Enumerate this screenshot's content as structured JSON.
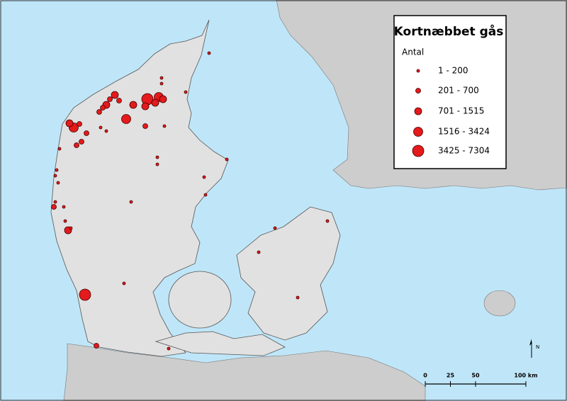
{
  "map": {
    "title": "Kortnæbbet gås",
    "legend": {
      "heading": "Antal",
      "items": [
        "1 - 200",
        "201 - 700",
        "701 - 1515",
        "1516 - 3424",
        "3425 - 7304"
      ]
    },
    "scale_bar": {
      "ticks": [
        0,
        25,
        50,
        {
          "value": 100,
          "label": "100 km"
        }
      ]
    },
    "north_label": "N"
  }
}
